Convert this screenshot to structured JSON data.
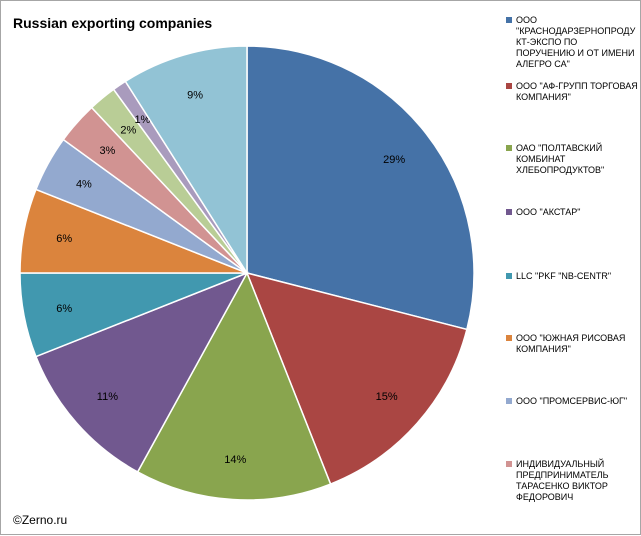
{
  "chart_data": {
    "type": "pie",
    "title": "Russian exporting companies",
    "credit": "©Zerno.ru",
    "legend_position": "right",
    "start_angle_deg": 0,
    "direction": "clockwise",
    "series": [
      {
        "name": "ООО \"КРАСНОДАРЗЕРНОПРОДУКТ-ЭКСПО ПО ПОРУЧЕНИЮ И ОТ ИМЕНИ АЛЕГРО СА\"",
        "value": 29,
        "label": "29%",
        "color": "#4572a7"
      },
      {
        "name": "ООО \"АФ-ГРУПП ТОРГОВАЯ КОМПАНИЯ\"",
        "value": 15,
        "label": "15%",
        "color": "#aa4643"
      },
      {
        "name": "ОАО \"ПОЛТАВСКИЙ КОМБИНАТ ХЛЕБОПРОДУКТОВ\"",
        "value": 14,
        "label": "14%",
        "color": "#89a54e"
      },
      {
        "name": "ООО \"АКСТАР\"",
        "value": 11,
        "label": "11%",
        "color": "#71588f"
      },
      {
        "name": "LLC \"PKF \"NB-CENTR\"",
        "value": 6,
        "label": "6%",
        "color": "#4198af"
      },
      {
        "name": "ООО \"ЮЖНАЯ РИСОВАЯ КОМПАНИЯ\"",
        "value": 6,
        "label": "6%",
        "color": "#db843d"
      },
      {
        "name": "ООО \"ПРОМСЕРВИС-ЮГ\"",
        "value": 4,
        "label": "4%",
        "color": "#93a9cf"
      },
      {
        "name": "ИНДИВИДУАЛЬНЫЙ ПРЕДПРИНИМАТЕЛЬ ТАРАСЕНКО ВИКТОР ФЕДОРОВИЧ",
        "value": 3,
        "label": "3%",
        "color": "#d19392"
      },
      {
        "name": "",
        "value": 2,
        "label": "2%",
        "color": "#b9cd96"
      },
      {
        "name": "",
        "value": 1,
        "label": "1%",
        "color": "#a99bbd"
      },
      {
        "name": "",
        "value": 9,
        "label": "9%",
        "color": "#92c3d5"
      }
    ]
  }
}
